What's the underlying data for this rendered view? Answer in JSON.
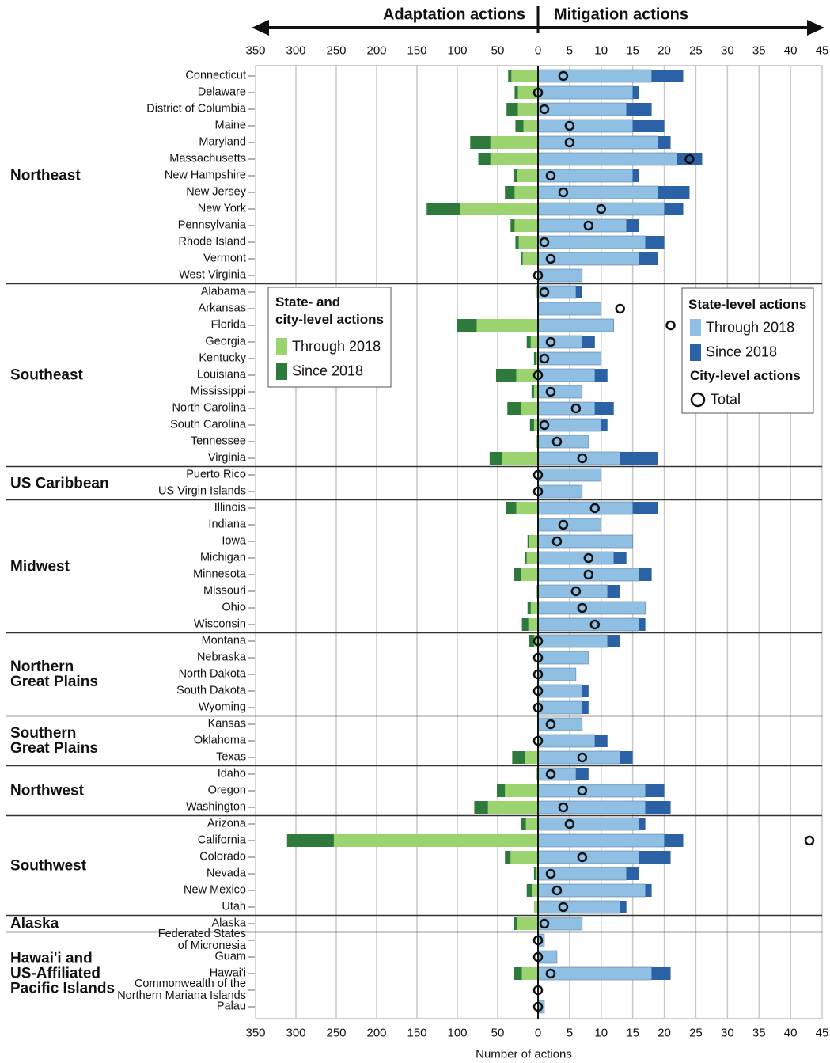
{
  "chart_data": {
    "type": "bar",
    "header_left": "Adaptation actions",
    "header_right": "Mitigation actions",
    "xlabel": "Number of actions",
    "xlim_left": [
      0,
      350
    ],
    "xticks_left": [
      0,
      50,
      100,
      150,
      200,
      250,
      300,
      350
    ],
    "xlim_right": [
      0,
      45
    ],
    "xticks_right": [
      5,
      10,
      15,
      20,
      25,
      30,
      35,
      40,
      45
    ],
    "grid": true,
    "legend_left_title": "State- and\ncity-level actions",
    "legend_right_title": "State-level actions",
    "legend_city_title": "City-level actions",
    "regions": [
      {
        "name": "Northeast",
        "categories": [
          "Connecticut",
          "Delaware",
          "District of Columbia",
          "Maine",
          "Maryland",
          "Massachusetts",
          "New Hampshire",
          "New Jersey",
          "New York",
          "Pennsylvania",
          "Rhode Island",
          "Vermont",
          "West Virginia"
        ]
      },
      {
        "name": "Southeast",
        "categories": [
          "Alabama",
          "Arkansas",
          "Florida",
          "Georgia",
          "Kentucky",
          "Louisiana",
          "Mississippi",
          "North Carolina",
          "South Carolina",
          "Tennessee",
          "Virginia"
        ]
      },
      {
        "name": "US Caribbean",
        "categories": [
          "Puerto Rico",
          "US Virgin Islands"
        ]
      },
      {
        "name": "Midwest",
        "categories": [
          "Illinois",
          "Indiana",
          "Iowa",
          "Michigan",
          "Minnesota",
          "Missouri",
          "Ohio",
          "Wisconsin"
        ]
      },
      {
        "name": "Northern\nGreat Plains",
        "categories": [
          "Montana",
          "Nebraska",
          "North Dakota",
          "South Dakota",
          "Wyoming"
        ]
      },
      {
        "name": "Southern\nGreat Plains",
        "categories": [
          "Kansas",
          "Oklahoma",
          "Texas"
        ]
      },
      {
        "name": "Northwest",
        "categories": [
          "Idaho",
          "Oregon",
          "Washington"
        ]
      },
      {
        "name": "Southwest",
        "categories": [
          "Arizona",
          "California",
          "Colorado",
          "Nevada",
          "New Mexico",
          "Utah"
        ]
      },
      {
        "name": "Alaska",
        "categories": [
          "Alaska"
        ]
      },
      {
        "name": "Hawai'i and\nUS-Affiliated\nPacific Islands",
        "categories": [
          "Federated States\nof Micronesia",
          "Guam",
          "Hawai'i",
          "Commonwealth of the\nNorthern Mariana Islands",
          "Palau"
        ]
      }
    ],
    "series": [
      {
        "name": "Through 2018",
        "color": "#9bd36e",
        "values": [
          33,
          25,
          25,
          18,
          59,
          59,
          26,
          29,
          97,
          29,
          24,
          19,
          0,
          2,
          0,
          76,
          9,
          2,
          27,
          5,
          21,
          5,
          3,
          45,
          0,
          0,
          27,
          1,
          11,
          14,
          21,
          2,
          9,
          12,
          5,
          0,
          0,
          0,
          0,
          0,
          0,
          16,
          2,
          41,
          62,
          15,
          253,
          34,
          3,
          7,
          5,
          26,
          0,
          0,
          20,
          0,
          0
        ]
      },
      {
        "name": "Since 2018",
        "color": "#2e7a3c",
        "values": [
          4,
          4,
          14,
          10,
          25,
          15,
          4,
          12,
          41,
          5,
          4,
          2,
          0,
          1,
          0,
          25,
          5,
          3,
          25,
          3,
          17,
          5,
          0,
          15,
          0,
          0,
          13,
          0,
          2,
          2,
          9,
          0,
          4,
          8,
          6,
          0,
          0,
          0,
          0,
          0,
          0,
          16,
          0,
          10,
          17,
          6,
          58,
          7,
          2,
          7,
          0,
          4,
          0,
          0,
          10,
          0,
          0
        ]
      },
      {
        "name": "Through 2018",
        "color": "#8fc0e3",
        "values": [
          18,
          15,
          14,
          15,
          19,
          22,
          15,
          19,
          20,
          14,
          17,
          16,
          7,
          6,
          10,
          12,
          7,
          10,
          9,
          7,
          9,
          10,
          8,
          13,
          10,
          7,
          15,
          10,
          15,
          12,
          16,
          11,
          17,
          16,
          11,
          8,
          6,
          7,
          7,
          7,
          9,
          13,
          6,
          17,
          17,
          16,
          20,
          16,
          14,
          17,
          13,
          7,
          1,
          3,
          18,
          0,
          1
        ]
      },
      {
        "name": "Since 2018",
        "color": "#2b62a5",
        "values": [
          5,
          1,
          4,
          5,
          2,
          4,
          1,
          5,
          3,
          2,
          3,
          3,
          0,
          1,
          0,
          0,
          2,
          0,
          2,
          0,
          3,
          1,
          0,
          6,
          0,
          0,
          4,
          0,
          0,
          2,
          2,
          2,
          0,
          1,
          2,
          0,
          0,
          1,
          1,
          0,
          2,
          2,
          2,
          3,
          4,
          1,
          3,
          5,
          2,
          1,
          1,
          0,
          0,
          0,
          3,
          0,
          0
        ]
      },
      {
        "name": "Total",
        "color": "#111111",
        "values": [
          4,
          0,
          1,
          5,
          5,
          24,
          2,
          4,
          10,
          8,
          1,
          2,
          0,
          1,
          13,
          21,
          2,
          1,
          0,
          2,
          6,
          1,
          3,
          7,
          0,
          0,
          9,
          4,
          3,
          8,
          8,
          6,
          7,
          9,
          0,
          0,
          0,
          0,
          0,
          2,
          0,
          7,
          2,
          7,
          4,
          5,
          43,
          7,
          2,
          3,
          4,
          1,
          0,
          0,
          2,
          0,
          0
        ]
      }
    ]
  }
}
